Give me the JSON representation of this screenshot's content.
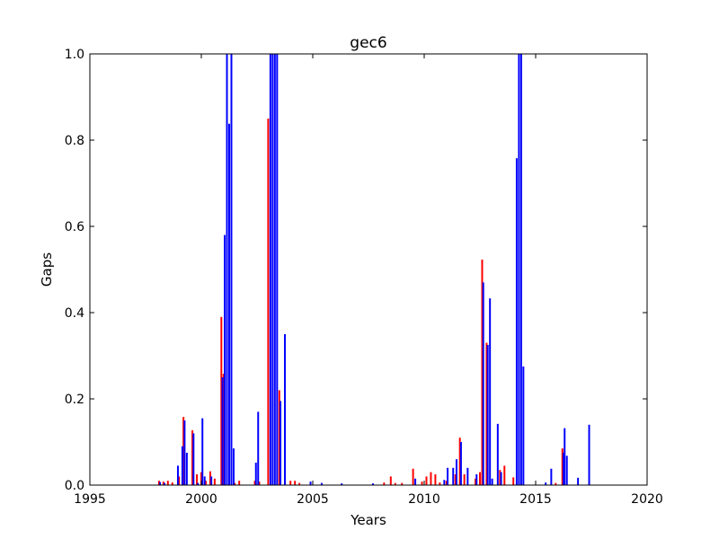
{
  "chart_data": {
    "type": "bar",
    "title": "gec6",
    "xlabel": "Years",
    "ylabel": "Gaps",
    "xlim": [
      1995,
      2020
    ],
    "ylim": [
      0,
      1.0
    ],
    "x_ticks": [
      "1995",
      "2000",
      "2005",
      "2010",
      "2015",
      "2020"
    ],
    "y_ticks": [
      "0.0",
      "0.2",
      "0.4",
      "0.6",
      "0.8",
      "1.0"
    ],
    "grid": false,
    "series": [
      {
        "color": "#ff0000",
        "bar_width_years": 0.08,
        "points": [
          {
            "x": 1998.1,
            "y": 0.01
          },
          {
            "x": 1998.3,
            "y": 0.008
          },
          {
            "x": 1998.5,
            "y": 0.01
          },
          {
            "x": 1998.7,
            "y": 0.006
          },
          {
            "x": 1999.0,
            "y": 0.02
          },
          {
            "x": 1999.2,
            "y": 0.158
          },
          {
            "x": 1999.6,
            "y": 0.127
          },
          {
            "x": 1999.8,
            "y": 0.025
          },
          {
            "x": 2000.0,
            "y": 0.03
          },
          {
            "x": 2000.2,
            "y": 0.01
          },
          {
            "x": 2000.4,
            "y": 0.032
          },
          {
            "x": 2000.6,
            "y": 0.015
          },
          {
            "x": 2000.9,
            "y": 0.39
          },
          {
            "x": 2001.0,
            "y": 0.258
          },
          {
            "x": 2001.5,
            "y": 0.005
          },
          {
            "x": 2001.7,
            "y": 0.01
          },
          {
            "x": 2002.4,
            "y": 0.01
          },
          {
            "x": 2002.6,
            "y": 0.008
          },
          {
            "x": 2003.0,
            "y": 0.85
          },
          {
            "x": 2003.5,
            "y": 0.22
          },
          {
            "x": 2004.0,
            "y": 0.01
          },
          {
            "x": 2004.2,
            "y": 0.01
          },
          {
            "x": 2004.4,
            "y": 0.005
          },
          {
            "x": 2008.2,
            "y": 0.006
          },
          {
            "x": 2008.5,
            "y": 0.02
          },
          {
            "x": 2008.7,
            "y": 0.005
          },
          {
            "x": 2009.0,
            "y": 0.005
          },
          {
            "x": 2009.5,
            "y": 0.038
          },
          {
            "x": 2009.9,
            "y": 0.008
          },
          {
            "x": 2010.1,
            "y": 0.02
          },
          {
            "x": 2010.3,
            "y": 0.03
          },
          {
            "x": 2010.5,
            "y": 0.025
          },
          {
            "x": 2010.7,
            "y": 0.006
          },
          {
            "x": 2011.0,
            "y": 0.01
          },
          {
            "x": 2011.4,
            "y": 0.025
          },
          {
            "x": 2011.6,
            "y": 0.11
          },
          {
            "x": 2011.8,
            "y": 0.025
          },
          {
            "x": 2012.3,
            "y": 0.015
          },
          {
            "x": 2012.5,
            "y": 0.03
          },
          {
            "x": 2012.6,
            "y": 0.523
          },
          {
            "x": 2012.8,
            "y": 0.33
          },
          {
            "x": 2013.4,
            "y": 0.035
          },
          {
            "x": 2013.6,
            "y": 0.045
          },
          {
            "x": 2014.0,
            "y": 0.018
          },
          {
            "x": 2015.9,
            "y": 0.005
          },
          {
            "x": 2016.2,
            "y": 0.085
          }
        ]
      },
      {
        "color": "#0000ff",
        "bar_width_years": 0.08,
        "points": [
          {
            "x": 1998.15,
            "y": 0.007
          },
          {
            "x": 1998.35,
            "y": 0.005
          },
          {
            "x": 1998.95,
            "y": 0.045
          },
          {
            "x": 1999.15,
            "y": 0.09
          },
          {
            "x": 1999.25,
            "y": 0.15
          },
          {
            "x": 1999.35,
            "y": 0.075
          },
          {
            "x": 1999.65,
            "y": 0.12
          },
          {
            "x": 1999.85,
            "y": 0.005
          },
          {
            "x": 2000.05,
            "y": 0.155
          },
          {
            "x": 2000.15,
            "y": 0.02
          },
          {
            "x": 2000.45,
            "y": 0.02
          },
          {
            "x": 2000.95,
            "y": 0.25
          },
          {
            "x": 2001.05,
            "y": 0.58
          },
          {
            "x": 2001.15,
            "y": 1.0
          },
          {
            "x": 2001.25,
            "y": 0.838
          },
          {
            "x": 2001.35,
            "y": 1.0
          },
          {
            "x": 2001.45,
            "y": 0.085
          },
          {
            "x": 2002.45,
            "y": 0.052
          },
          {
            "x": 2002.55,
            "y": 0.17
          },
          {
            "x": 2003.1,
            "y": 1.0
          },
          {
            "x": 2003.2,
            "y": 1.0
          },
          {
            "x": 2003.3,
            "y": 1.0
          },
          {
            "x": 2003.4,
            "y": 1.0
          },
          {
            "x": 2003.55,
            "y": 0.195
          },
          {
            "x": 2003.75,
            "y": 0.35
          },
          {
            "x": 2004.9,
            "y": 0.008
          },
          {
            "x": 2005.4,
            "y": 0.005
          },
          {
            "x": 2006.3,
            "y": 0.004
          },
          {
            "x": 2007.7,
            "y": 0.004
          },
          {
            "x": 2009.6,
            "y": 0.015
          },
          {
            "x": 2010.9,
            "y": 0.012
          },
          {
            "x": 2011.05,
            "y": 0.04
          },
          {
            "x": 2011.3,
            "y": 0.04
          },
          {
            "x": 2011.45,
            "y": 0.06
          },
          {
            "x": 2011.65,
            "y": 0.1
          },
          {
            "x": 2011.95,
            "y": 0.04
          },
          {
            "x": 2012.35,
            "y": 0.025
          },
          {
            "x": 2012.65,
            "y": 0.47
          },
          {
            "x": 2012.85,
            "y": 0.325
          },
          {
            "x": 2012.95,
            "y": 0.433
          },
          {
            "x": 2013.05,
            "y": 0.015
          },
          {
            "x": 2013.3,
            "y": 0.142
          },
          {
            "x": 2013.45,
            "y": 0.03
          },
          {
            "x": 2014.15,
            "y": 0.758
          },
          {
            "x": 2014.25,
            "y": 1.0
          },
          {
            "x": 2014.35,
            "y": 1.0
          },
          {
            "x": 2014.45,
            "y": 0.275
          },
          {
            "x": 2015.45,
            "y": 0.006
          },
          {
            "x": 2015.7,
            "y": 0.038
          },
          {
            "x": 2016.25,
            "y": 0.075
          },
          {
            "x": 2016.3,
            "y": 0.132
          },
          {
            "x": 2016.4,
            "y": 0.068
          },
          {
            "x": 2016.9,
            "y": 0.017
          },
          {
            "x": 2017.4,
            "y": 0.14
          }
        ]
      }
    ]
  }
}
